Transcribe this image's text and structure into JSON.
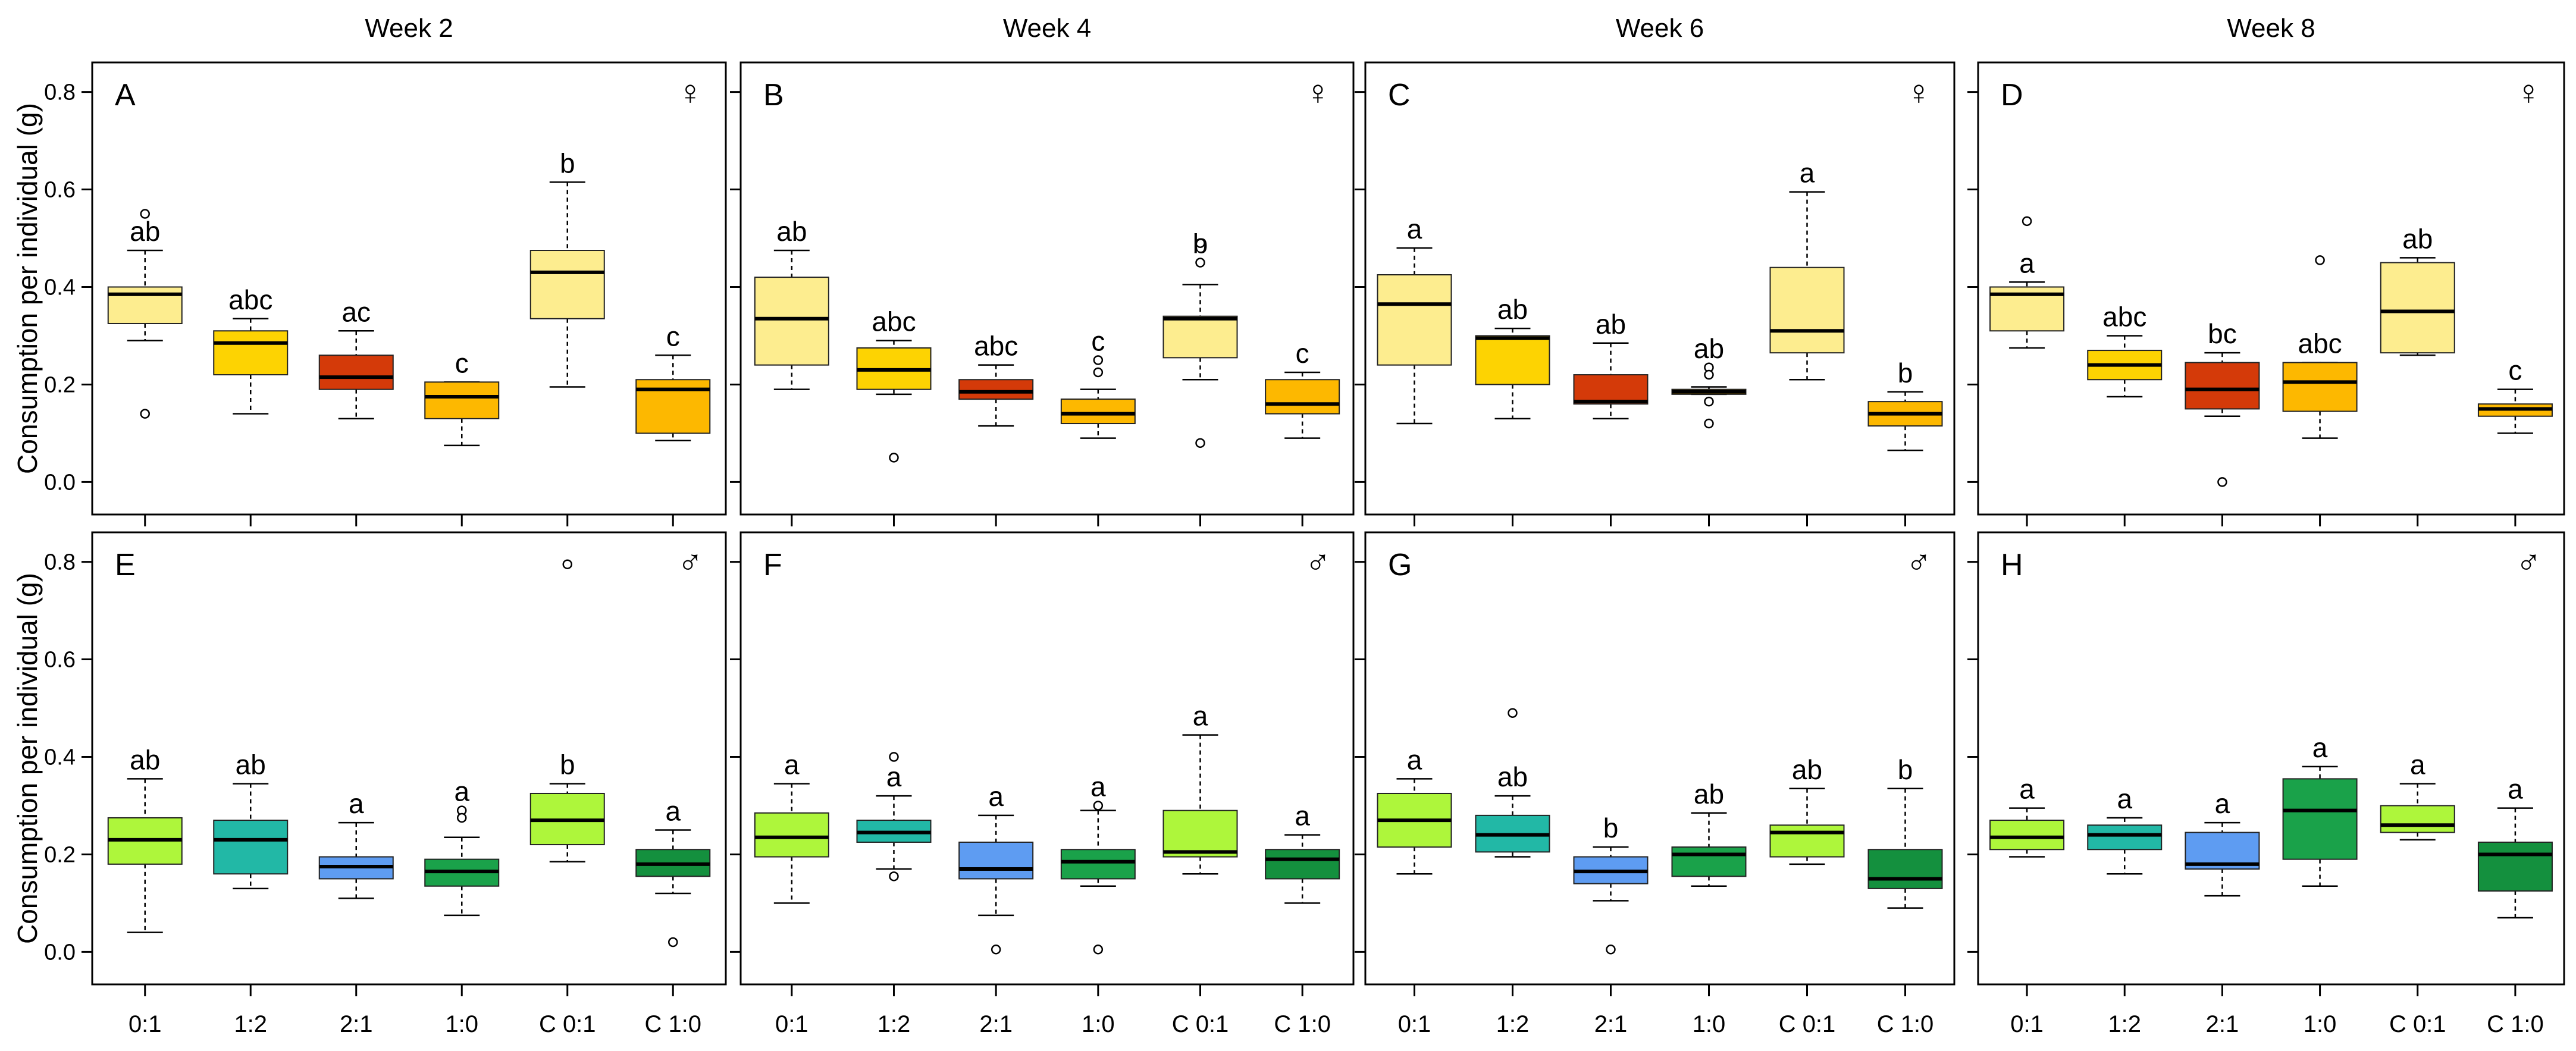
{
  "chart_data": {
    "type": "boxplot",
    "ylabel": "Consumption per individual (g)",
    "ylim": [
      -0.03,
      0.83
    ],
    "yticks": [
      "0.0",
      "0.2",
      "0.4",
      "0.6",
      "0.8"
    ],
    "categories": [
      "0:1",
      "1:2",
      "2:1",
      "1:0",
      "C 0:1",
      "C 1:0"
    ],
    "weeks": [
      "Week 2",
      "Week 4",
      "Week 6",
      "Week 8"
    ],
    "panels": [
      {
        "letter": "A",
        "week": "Week 2",
        "sex": "female",
        "symbol": "♀",
        "colors": [
          "#fded8f",
          "#fdd302",
          "#d43a09",
          "#fdb800",
          "#fded8f",
          "#fdb800"
        ],
        "boxes": [
          {
            "wlo": 0.29,
            "q1": 0.325,
            "med": 0.385,
            "q3": 0.4,
            "whi": 0.475,
            "outliers": [
              0.55,
              0.14
            ],
            "sig": "ab"
          },
          {
            "wlo": 0.14,
            "q1": 0.22,
            "med": 0.285,
            "q3": 0.31,
            "whi": 0.335,
            "outliers": [],
            "sig": "abc"
          },
          {
            "wlo": 0.13,
            "q1": 0.19,
            "med": 0.215,
            "q3": 0.26,
            "whi": 0.31,
            "outliers": [],
            "sig": "ac"
          },
          {
            "wlo": 0.075,
            "q1": 0.13,
            "med": 0.175,
            "q3": 0.205,
            "whi": 0.205,
            "outliers": [],
            "sig": "c"
          },
          {
            "wlo": 0.195,
            "q1": 0.335,
            "med": 0.43,
            "q3": 0.475,
            "whi": 0.615,
            "outliers": [],
            "sig": "b"
          },
          {
            "wlo": 0.085,
            "q1": 0.1,
            "med": 0.19,
            "q3": 0.21,
            "whi": 0.26,
            "outliers": [],
            "sig": "c"
          }
        ]
      },
      {
        "letter": "B",
        "week": "Week 4",
        "sex": "female",
        "symbol": "♀",
        "colors": [
          "#fded8f",
          "#fdd302",
          "#d43a09",
          "#fdb800",
          "#fded8f",
          "#fdb800"
        ],
        "boxes": [
          {
            "wlo": 0.19,
            "q1": 0.24,
            "med": 0.335,
            "q3": 0.42,
            "whi": 0.475,
            "outliers": [],
            "sig": "ab"
          },
          {
            "wlo": 0.18,
            "q1": 0.19,
            "med": 0.23,
            "q3": 0.275,
            "whi": 0.29,
            "outliers": [
              0.05
            ],
            "sig": "abc"
          },
          {
            "wlo": 0.115,
            "q1": 0.17,
            "med": 0.185,
            "q3": 0.21,
            "whi": 0.24,
            "outliers": [],
            "sig": "abc"
          },
          {
            "wlo": 0.09,
            "q1": 0.12,
            "med": 0.14,
            "q3": 0.17,
            "whi": 0.19,
            "outliers": [
              0.25,
              0.225
            ],
            "sig": "c"
          },
          {
            "wlo": 0.21,
            "q1": 0.255,
            "med": 0.335,
            "q3": 0.34,
            "whi": 0.405,
            "outliers": [
              0.49,
              0.45,
              0.08
            ],
            "sig": "b"
          },
          {
            "wlo": 0.09,
            "q1": 0.14,
            "med": 0.16,
            "q3": 0.21,
            "whi": 0.225,
            "outliers": [],
            "sig": "c"
          }
        ]
      },
      {
        "letter": "C",
        "week": "Week 6",
        "sex": "female",
        "symbol": "♀",
        "colors": [
          "#fded8f",
          "#fdd302",
          "#d43a09",
          "#fdb800",
          "#fded8f",
          "#fdb800"
        ],
        "boxes": [
          {
            "wlo": 0.12,
            "q1": 0.24,
            "med": 0.365,
            "q3": 0.425,
            "whi": 0.48,
            "outliers": [],
            "sig": "a"
          },
          {
            "wlo": 0.13,
            "q1": 0.2,
            "med": 0.295,
            "q3": 0.3,
            "whi": 0.315,
            "outliers": [],
            "sig": "ab"
          },
          {
            "wlo": 0.13,
            "q1": 0.16,
            "med": 0.165,
            "q3": 0.22,
            "whi": 0.285,
            "outliers": [],
            "sig": "ab"
          },
          {
            "wlo": 0.18,
            "q1": 0.18,
            "med": 0.185,
            "q3": 0.19,
            "whi": 0.195,
            "outliers": [
              0.235,
              0.22,
              0.165,
              0.12
            ],
            "sig": "ab"
          },
          {
            "wlo": 0.21,
            "q1": 0.265,
            "med": 0.31,
            "q3": 0.44,
            "whi": 0.595,
            "outliers": [],
            "sig": "a"
          },
          {
            "wlo": 0.065,
            "q1": 0.115,
            "med": 0.14,
            "q3": 0.165,
            "whi": 0.185,
            "outliers": [],
            "sig": "b"
          }
        ]
      },
      {
        "letter": "D",
        "week": "Week 8",
        "sex": "female",
        "symbol": "♀",
        "colors": [
          "#fded8f",
          "#fdd302",
          "#d43a09",
          "#fdb800",
          "#fded8f",
          "#fdb800"
        ],
        "boxes": [
          {
            "wlo": 0.275,
            "q1": 0.31,
            "med": 0.385,
            "q3": 0.4,
            "whi": 0.41,
            "outliers": [
              0.535
            ],
            "sig": "a"
          },
          {
            "wlo": 0.175,
            "q1": 0.21,
            "med": 0.24,
            "q3": 0.27,
            "whi": 0.3,
            "outliers": [],
            "sig": "abc"
          },
          {
            "wlo": 0.135,
            "q1": 0.15,
            "med": 0.19,
            "q3": 0.245,
            "whi": 0.265,
            "outliers": [
              0.0
            ],
            "sig": "bc"
          },
          {
            "wlo": 0.09,
            "q1": 0.145,
            "med": 0.205,
            "q3": 0.245,
            "whi": 0.245,
            "outliers": [
              0.455
            ],
            "sig": "abc"
          },
          {
            "wlo": 0.26,
            "q1": 0.265,
            "med": 0.35,
            "q3": 0.45,
            "whi": 0.46,
            "outliers": [],
            "sig": "ab"
          },
          {
            "wlo": 0.1,
            "q1": 0.135,
            "med": 0.15,
            "q3": 0.16,
            "whi": 0.19,
            "outliers": [],
            "sig": "c"
          }
        ]
      },
      {
        "letter": "E",
        "week": "Week 2",
        "sex": "male",
        "symbol": "♂",
        "colors": [
          "#aef63b",
          "#22b8a6",
          "#5e9cf2",
          "#1aa24a",
          "#aef63b",
          "#14903e"
        ],
        "boxes": [
          {
            "wlo": 0.04,
            "q1": 0.18,
            "med": 0.23,
            "q3": 0.275,
            "whi": 0.355,
            "outliers": [],
            "sig": "ab"
          },
          {
            "wlo": 0.13,
            "q1": 0.16,
            "med": 0.23,
            "q3": 0.27,
            "whi": 0.345,
            "outliers": [],
            "sig": "ab"
          },
          {
            "wlo": 0.11,
            "q1": 0.15,
            "med": 0.175,
            "q3": 0.195,
            "whi": 0.265,
            "outliers": [],
            "sig": "a"
          },
          {
            "wlo": 0.075,
            "q1": 0.135,
            "med": 0.165,
            "q3": 0.19,
            "whi": 0.235,
            "outliers": [
              0.29,
              0.275
            ],
            "sig": "a"
          },
          {
            "wlo": 0.185,
            "q1": 0.22,
            "med": 0.27,
            "q3": 0.325,
            "whi": 0.345,
            "outliers": [
              0.795
            ],
            "sig": "b"
          },
          {
            "wlo": 0.12,
            "q1": 0.155,
            "med": 0.18,
            "q3": 0.21,
            "whi": 0.25,
            "outliers": [
              0.02
            ],
            "sig": "a"
          }
        ]
      },
      {
        "letter": "F",
        "week": "Week 4",
        "sex": "male",
        "symbol": "♂",
        "colors": [
          "#aef63b",
          "#22b8a6",
          "#5e9cf2",
          "#1aa24a",
          "#aef63b",
          "#14903e"
        ],
        "boxes": [
          {
            "wlo": 0.1,
            "q1": 0.195,
            "med": 0.235,
            "q3": 0.285,
            "whi": 0.345,
            "outliers": [],
            "sig": "a"
          },
          {
            "wlo": 0.17,
            "q1": 0.225,
            "med": 0.245,
            "q3": 0.27,
            "whi": 0.32,
            "outliers": [
              0.4,
              0.155
            ],
            "sig": "a"
          },
          {
            "wlo": 0.075,
            "q1": 0.15,
            "med": 0.17,
            "q3": 0.225,
            "whi": 0.28,
            "outliers": [
              0.005
            ],
            "sig": "a"
          },
          {
            "wlo": 0.135,
            "q1": 0.15,
            "med": 0.185,
            "q3": 0.21,
            "whi": 0.29,
            "outliers": [
              0.3,
              0.005
            ],
            "sig": "a"
          },
          {
            "wlo": 0.16,
            "q1": 0.195,
            "med": 0.205,
            "q3": 0.29,
            "whi": 0.445,
            "outliers": [],
            "sig": "a"
          },
          {
            "wlo": 0.1,
            "q1": 0.15,
            "med": 0.19,
            "q3": 0.21,
            "whi": 0.24,
            "outliers": [],
            "sig": "a"
          }
        ]
      },
      {
        "letter": "G",
        "week": "Week 6",
        "sex": "male",
        "symbol": "♂",
        "colors": [
          "#aef63b",
          "#22b8a6",
          "#5e9cf2",
          "#1aa24a",
          "#aef63b",
          "#14903e"
        ],
        "boxes": [
          {
            "wlo": 0.16,
            "q1": 0.215,
            "med": 0.27,
            "q3": 0.325,
            "whi": 0.355,
            "outliers": [],
            "sig": "a"
          },
          {
            "wlo": 0.195,
            "q1": 0.205,
            "med": 0.24,
            "q3": 0.28,
            "whi": 0.32,
            "outliers": [
              0.49
            ],
            "sig": "ab"
          },
          {
            "wlo": 0.105,
            "q1": 0.14,
            "med": 0.165,
            "q3": 0.195,
            "whi": 0.215,
            "outliers": [
              0.005
            ],
            "sig": "b"
          },
          {
            "wlo": 0.135,
            "q1": 0.155,
            "med": 0.2,
            "q3": 0.215,
            "whi": 0.285,
            "outliers": [],
            "sig": "ab"
          },
          {
            "wlo": 0.18,
            "q1": 0.195,
            "med": 0.245,
            "q3": 0.26,
            "whi": 0.335,
            "outliers": [],
            "sig": "ab"
          },
          {
            "wlo": 0.09,
            "q1": 0.13,
            "med": 0.15,
            "q3": 0.21,
            "whi": 0.335,
            "outliers": [],
            "sig": "b"
          }
        ]
      },
      {
        "letter": "H",
        "week": "Week 8",
        "sex": "male",
        "symbol": "♂",
        "colors": [
          "#aef63b",
          "#22b8a6",
          "#5e9cf2",
          "#1aa24a",
          "#aef63b",
          "#14903e"
        ],
        "boxes": [
          {
            "wlo": 0.195,
            "q1": 0.21,
            "med": 0.235,
            "q3": 0.27,
            "whi": 0.295,
            "outliers": [],
            "sig": "a"
          },
          {
            "wlo": 0.16,
            "q1": 0.21,
            "med": 0.24,
            "q3": 0.26,
            "whi": 0.275,
            "outliers": [],
            "sig": "a"
          },
          {
            "wlo": 0.115,
            "q1": 0.17,
            "med": 0.18,
            "q3": 0.245,
            "whi": 0.265,
            "outliers": [],
            "sig": "a"
          },
          {
            "wlo": 0.135,
            "q1": 0.19,
            "med": 0.29,
            "q3": 0.355,
            "whi": 0.38,
            "outliers": [],
            "sig": "a"
          },
          {
            "wlo": 0.23,
            "q1": 0.245,
            "med": 0.26,
            "q3": 0.3,
            "whi": 0.345,
            "outliers": [],
            "sig": "a"
          },
          {
            "wlo": 0.07,
            "q1": 0.125,
            "med": 0.2,
            "q3": 0.225,
            "whi": 0.295,
            "outliers": [],
            "sig": "a"
          }
        ]
      }
    ]
  }
}
